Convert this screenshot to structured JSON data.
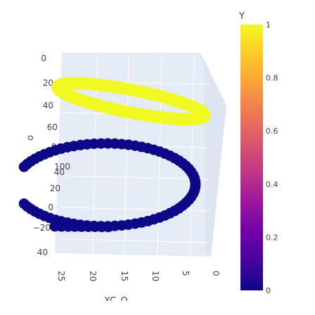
{
  "chart_data": {
    "type": "scatter3d",
    "colorscale": "plasma",
    "colorscale_stops": [
      "#0d0887",
      "#46039f",
      "#7201a8",
      "#9c179e",
      "#bd3786",
      "#d8576b",
      "#ed7953",
      "#fb9f3a",
      "#fdca26",
      "#f0f921"
    ],
    "colorbar": {
      "title": "Y",
      "range": [
        0,
        1
      ],
      "ticks": [
        "0",
        "0.2",
        "0.4",
        "0.6",
        "0.8",
        "1"
      ]
    },
    "axis_a": {
      "ticks": [
        "0",
        "20",
        "40",
        "60",
        "80",
        "100"
      ]
    },
    "axis_b": {
      "ticks": [
        "40",
        "20",
        "0",
        "−20",
        "40"
      ]
    },
    "axis_c": {
      "ticks": [
        "25",
        "20",
        "15",
        "10",
        "5",
        "0"
      ]
    },
    "axis_label_partial_left": "o",
    "axis_label_partial_bottom": "XC–O",
    "series": [
      {
        "y": 1,
        "shape": "ring"
      },
      {
        "y": 0,
        "shape": "arc"
      }
    ]
  }
}
